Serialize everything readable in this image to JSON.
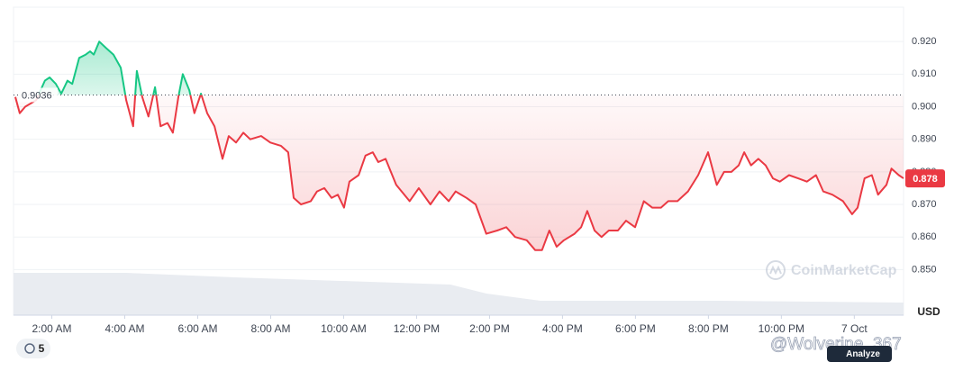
{
  "chart_data": {
    "type": "line",
    "baseline": 0.9036,
    "price_tag": 0.878,
    "axis_unit": "USD",
    "watermark": "CoinMarketCap",
    "up_color": "#16c784",
    "down_color": "#ea3943",
    "xlim": [
      0.95,
      25.35
    ],
    "xticks": [
      {
        "value": 2,
        "label": "2:00 AM"
      },
      {
        "value": 4,
        "label": "4:00 AM"
      },
      {
        "value": 6,
        "label": "6:00 AM"
      },
      {
        "value": 8,
        "label": "8:00 AM"
      },
      {
        "value": 10,
        "label": "10:00 AM"
      },
      {
        "value": 12,
        "label": "12:00 PM"
      },
      {
        "value": 14,
        "label": "2:00 PM"
      },
      {
        "value": 16,
        "label": "4:00 PM"
      },
      {
        "value": 18,
        "label": "6:00 PM"
      },
      {
        "value": 20,
        "label": "8:00 PM"
      },
      {
        "value": 22,
        "label": "10:00 PM"
      },
      {
        "value": 24,
        "label": "7 Oct"
      }
    ],
    "ylim": [
      0.836,
      0.93
    ],
    "yticks": [
      {
        "value": 0.85,
        "label": "0.850"
      },
      {
        "value": 0.86,
        "label": "0.860"
      },
      {
        "value": 0.87,
        "label": "0.870"
      },
      {
        "value": 0.88,
        "label": "0.880"
      },
      {
        "value": 0.89,
        "label": "0.890"
      },
      {
        "value": 0.9,
        "label": "0.900"
      },
      {
        "value": 0.91,
        "label": "0.910"
      },
      {
        "value": 0.92,
        "label": "0.920"
      }
    ],
    "grid": true,
    "series": [
      {
        "x": [
          1.0,
          1.12,
          1.27,
          1.57,
          1.81,
          1.94,
          2.11,
          2.26,
          2.43,
          2.56,
          2.75,
          2.93,
          3.05,
          3.15,
          3.3,
          3.49,
          3.69,
          3.89,
          4.04,
          4.23,
          4.33,
          4.48,
          4.65,
          4.83,
          4.98,
          5.17,
          5.32,
          5.47,
          5.59,
          5.77,
          5.91,
          6.09,
          6.26,
          6.46,
          6.68,
          6.85,
          7.05,
          7.25,
          7.44,
          7.74,
          7.99,
          8.28,
          8.48,
          8.63,
          8.83,
          9.1,
          9.27,
          9.47,
          9.67,
          9.84,
          10.01,
          10.16,
          10.41,
          10.6,
          10.8,
          10.95,
          11.15,
          11.44,
          11.81,
          12.06,
          12.38,
          12.63,
          12.88,
          13.07,
          13.37,
          13.62,
          13.91,
          14.21,
          14.46,
          14.7,
          15.02,
          15.25,
          15.44,
          15.64,
          15.84,
          16.04,
          16.33,
          16.51,
          16.68,
          16.88,
          17.07,
          17.27,
          17.52,
          17.74,
          17.99,
          18.23,
          18.46,
          18.7,
          18.9,
          19.15,
          19.44,
          19.72,
          19.99,
          20.23,
          20.43,
          20.63,
          20.83,
          20.98,
          21.17,
          21.37,
          21.57,
          21.77,
          21.96,
          22.21,
          22.46,
          22.7,
          22.95,
          23.15,
          23.4,
          23.69,
          23.94,
          24.09,
          24.28,
          24.48,
          24.65,
          24.88,
          25.02,
          25.22,
          25.35
        ],
        "values": [
          0.903,
          0.898,
          0.9,
          0.902,
          0.908,
          0.909,
          0.907,
          0.904,
          0.908,
          0.907,
          0.915,
          0.916,
          0.917,
          0.916,
          0.92,
          0.918,
          0.916,
          0.912,
          0.902,
          0.894,
          0.911,
          0.903,
          0.897,
          0.906,
          0.894,
          0.895,
          0.892,
          0.903,
          0.91,
          0.905,
          0.898,
          0.904,
          0.898,
          0.894,
          0.884,
          0.891,
          0.889,
          0.892,
          0.89,
          0.891,
          0.889,
          0.888,
          0.886,
          0.872,
          0.87,
          0.871,
          0.874,
          0.875,
          0.872,
          0.873,
          0.869,
          0.877,
          0.879,
          0.885,
          0.886,
          0.883,
          0.884,
          0.876,
          0.871,
          0.875,
          0.87,
          0.874,
          0.871,
          0.874,
          0.872,
          0.87,
          0.861,
          0.862,
          0.863,
          0.86,
          0.859,
          0.856,
          0.856,
          0.862,
          0.857,
          0.859,
          0.861,
          0.863,
          0.868,
          0.862,
          0.86,
          0.862,
          0.862,
          0.865,
          0.863,
          0.871,
          0.869,
          0.869,
          0.871,
          0.871,
          0.874,
          0.879,
          0.886,
          0.876,
          0.88,
          0.88,
          0.882,
          0.886,
          0.882,
          0.884,
          0.882,
          0.878,
          0.877,
          0.879,
          0.878,
          0.877,
          0.879,
          0.874,
          0.873,
          0.871,
          0.867,
          0.869,
          0.878,
          0.879,
          0.873,
          0.876,
          0.881,
          0.879,
          0.878
        ]
      }
    ]
  },
  "ui": {
    "badge": "5",
    "user_tag": "@Wolverine_367",
    "analyze": "Analyze"
  }
}
